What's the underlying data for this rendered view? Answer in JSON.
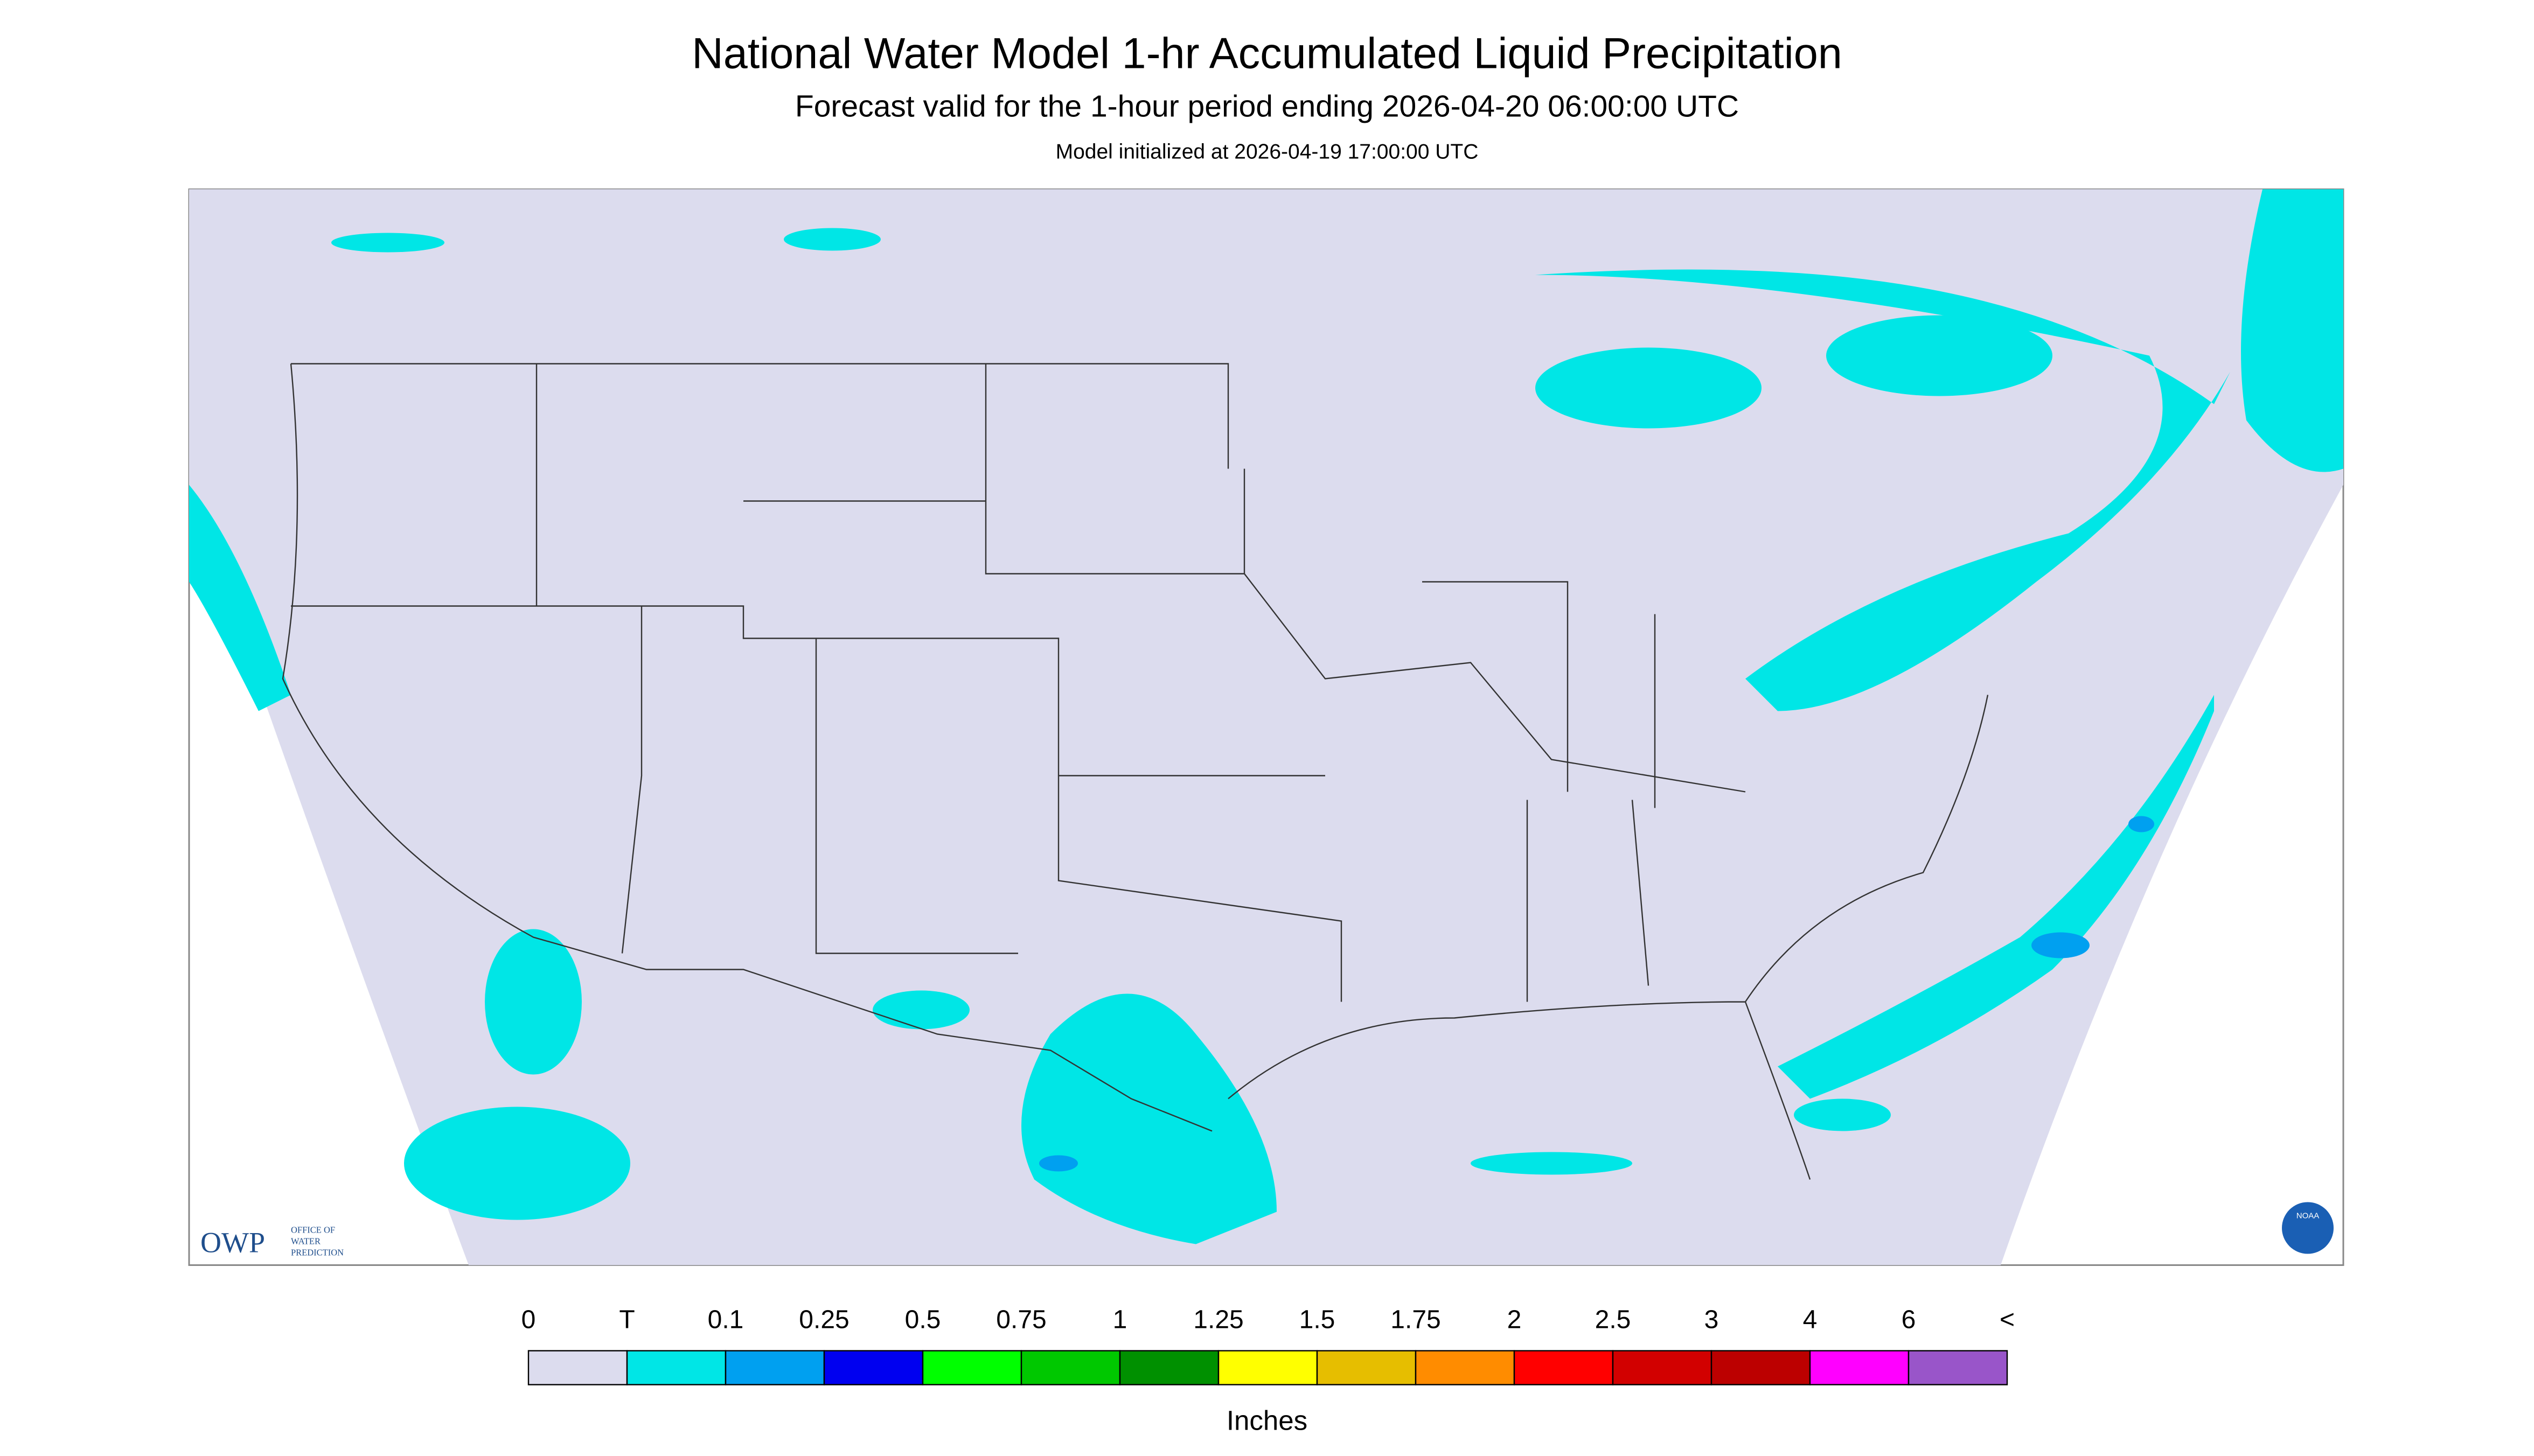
{
  "header": {
    "title": "National Water Model 1-hr Accumulated Liquid Precipitation",
    "subtitle": "Forecast valid for the 1-hour period ending 2026-04-20 06:00:00 UTC",
    "note": "Model initialized at 2026-04-19 17:00:00 UTC"
  },
  "logos": {
    "owp": "OWP",
    "owp_text": [
      "OFFICE OF",
      "WATER",
      "PREDICTION"
    ],
    "noaa": "NOAA"
  },
  "legend": {
    "labels": [
      "0",
      "T",
      "0.1",
      "0.25",
      "0.5",
      "0.75",
      "1",
      "1.25",
      "1.5",
      "1.75",
      "2",
      "2.5",
      "3",
      "4",
      "6",
      "<"
    ],
    "colors": [
      "#dcdcee",
      "#00e6e6",
      "#00a0f0",
      "#0000f0",
      "#00ff00",
      "#00c800",
      "#009000",
      "#ffff00",
      "#e6be00",
      "#ff8c00",
      "#ff0000",
      "#d20000",
      "#bc0000",
      "#ff00ff",
      "#9955c9"
    ],
    "units": "Inches"
  }
}
